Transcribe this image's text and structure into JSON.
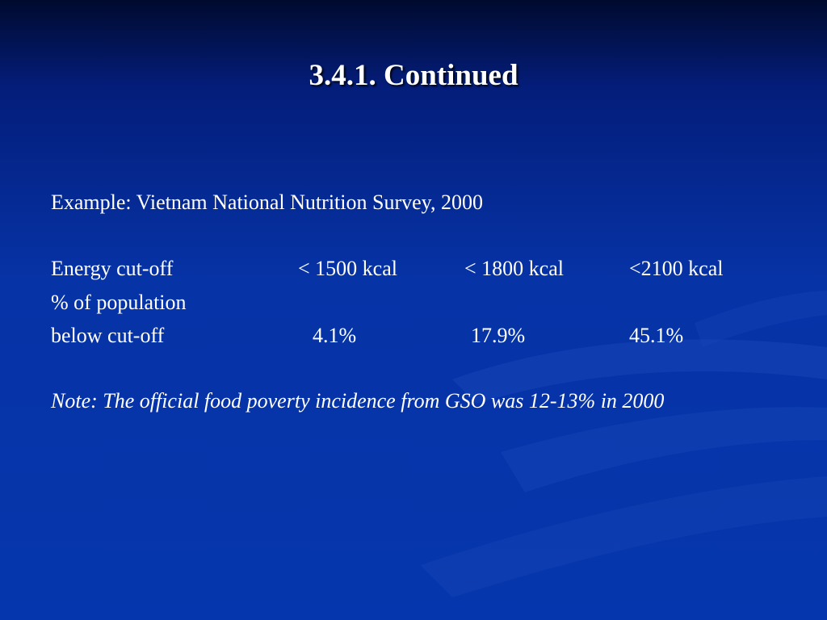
{
  "slide": {
    "title": "3.4.1. Continued",
    "example": "Example: Vietnam National Nutrition Survey, 2000",
    "table": {
      "header_label": "Energy cut-off",
      "columns": [
        "< 1500 kcal",
        "< 1800 kcal",
        "<2100 kcal"
      ],
      "row_label_line1": "% of population",
      "row_label_line2": "below cut-off",
      "values": [
        "4.1%",
        "17.9%",
        "45.1%"
      ]
    },
    "note": "Note: The official food poverty incidence from GSO was 12-13% in 2000"
  },
  "colors": {
    "background_top": "#000a2e",
    "background_main": "#0633a6",
    "text": "#ffffff"
  }
}
